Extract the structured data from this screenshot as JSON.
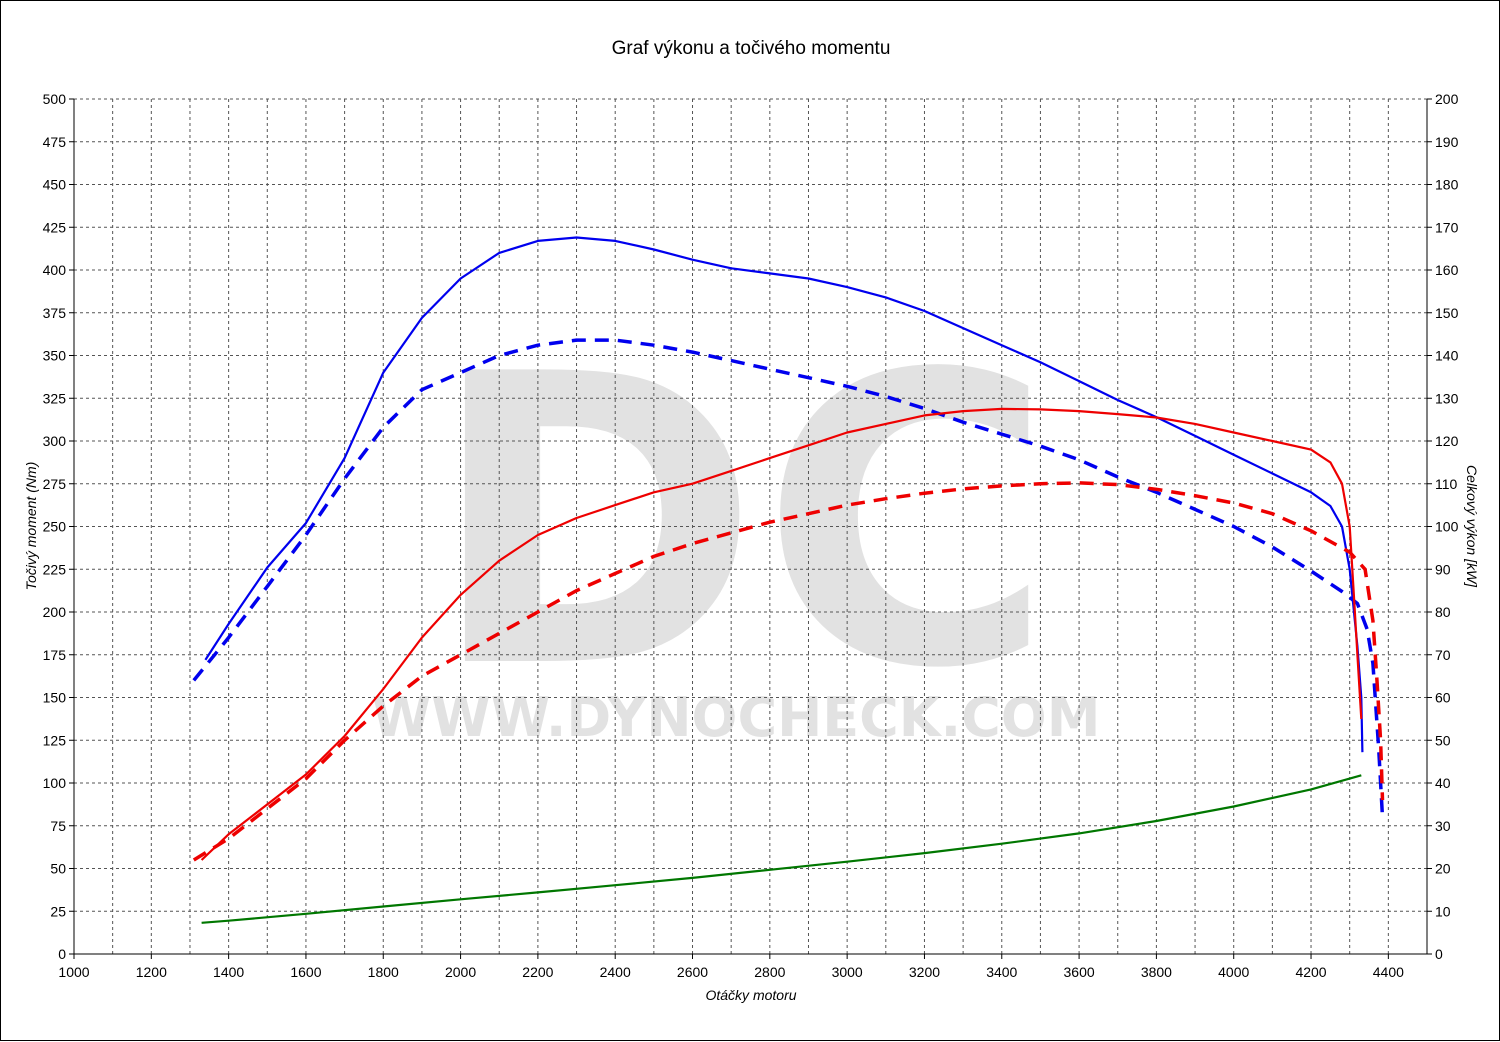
{
  "chart_data": {
    "type": "line",
    "title": "Graf výkonu a točivého momentu",
    "xlabel": "Otáčky motoru",
    "ylabel_left": "Točivý moment (Nm)",
    "ylabel_right": "Celkový výkon [kW]",
    "xlim": [
      1000,
      4500
    ],
    "ylim_left": [
      0,
      500
    ],
    "ylim_right": [
      0,
      200
    ],
    "x_ticks": [
      1000,
      1200,
      1400,
      1600,
      1800,
      2000,
      2200,
      2400,
      2600,
      2800,
      3000,
      3200,
      3400,
      3600,
      3800,
      4000,
      4200,
      4400
    ],
    "y_ticks_left": [
      0,
      25,
      50,
      75,
      100,
      125,
      150,
      175,
      200,
      225,
      250,
      275,
      300,
      325,
      350,
      375,
      400,
      425,
      450,
      475,
      500
    ],
    "y_ticks_right": [
      0,
      10,
      20,
      30,
      40,
      50,
      60,
      70,
      80,
      90,
      100,
      110,
      120,
      130,
      140,
      150,
      160,
      170,
      180,
      190,
      200
    ],
    "grid": true,
    "legend": "none",
    "watermark": {
      "logo": "DC",
      "text": "WWW.DYNOCHECK.COM"
    },
    "series": [
      {
        "color": "#0000ee",
        "dash": false,
        "axis": "left",
        "points": [
          [
            1340,
            172
          ],
          [
            1400,
            193
          ],
          [
            1500,
            226
          ],
          [
            1600,
            252
          ],
          [
            1700,
            290
          ],
          [
            1800,
            340
          ],
          [
            1900,
            372
          ],
          [
            2000,
            395
          ],
          [
            2100,
            410
          ],
          [
            2200,
            417
          ],
          [
            2300,
            419
          ],
          [
            2400,
            417
          ],
          [
            2500,
            412
          ],
          [
            2600,
            406
          ],
          [
            2700,
            401
          ],
          [
            2800,
            398
          ],
          [
            2900,
            395
          ],
          [
            3000,
            390
          ],
          [
            3100,
            384
          ],
          [
            3200,
            376
          ],
          [
            3300,
            366
          ],
          [
            3400,
            356
          ],
          [
            3500,
            346
          ],
          [
            3600,
            335
          ],
          [
            3700,
            324
          ],
          [
            3800,
            314
          ],
          [
            3900,
            303
          ],
          [
            4000,
            292
          ],
          [
            4100,
            281
          ],
          [
            4200,
            270
          ],
          [
            4250,
            262
          ],
          [
            4280,
            250
          ],
          [
            4300,
            225
          ],
          [
            4320,
            180
          ],
          [
            4330,
            150
          ],
          [
            4333,
            118
          ]
        ]
      },
      {
        "color": "#0000ee",
        "dash": true,
        "axis": "left",
        "points": [
          [
            1310,
            160
          ],
          [
            1400,
            185
          ],
          [
            1500,
            215
          ],
          [
            1600,
            245
          ],
          [
            1700,
            278
          ],
          [
            1800,
            308
          ],
          [
            1900,
            330
          ],
          [
            2000,
            340
          ],
          [
            2100,
            350
          ],
          [
            2200,
            356
          ],
          [
            2300,
            359
          ],
          [
            2400,
            359
          ],
          [
            2500,
            356
          ],
          [
            2600,
            352
          ],
          [
            2700,
            347
          ],
          [
            2800,
            342
          ],
          [
            2900,
            337
          ],
          [
            3000,
            332
          ],
          [
            3100,
            326
          ],
          [
            3200,
            319
          ],
          [
            3300,
            311
          ],
          [
            3400,
            304
          ],
          [
            3500,
            297
          ],
          [
            3600,
            289
          ],
          [
            3700,
            279
          ],
          [
            3800,
            270
          ],
          [
            3900,
            260
          ],
          [
            4000,
            250
          ],
          [
            4100,
            238
          ],
          [
            4200,
            224
          ],
          [
            4280,
            212
          ],
          [
            4320,
            205
          ],
          [
            4345,
            190
          ],
          [
            4360,
            170
          ],
          [
            4375,
            120
          ],
          [
            4385,
            80
          ]
        ]
      },
      {
        "color": "#ee0000",
        "dash": false,
        "axis": "right",
        "points": [
          [
            1330,
            22
          ],
          [
            1400,
            28
          ],
          [
            1500,
            35
          ],
          [
            1600,
            42
          ],
          [
            1700,
            51
          ],
          [
            1800,
            62
          ],
          [
            1900,
            74
          ],
          [
            2000,
            84
          ],
          [
            2100,
            92
          ],
          [
            2200,
            98
          ],
          [
            2300,
            102
          ],
          [
            2400,
            105
          ],
          [
            2500,
            108
          ],
          [
            2600,
            110
          ],
          [
            2700,
            113
          ],
          [
            2800,
            116
          ],
          [
            2900,
            119
          ],
          [
            3000,
            122
          ],
          [
            3100,
            124
          ],
          [
            3200,
            126
          ],
          [
            3300,
            127
          ],
          [
            3400,
            127.5
          ],
          [
            3500,
            127.4
          ],
          [
            3600,
            127
          ],
          [
            3700,
            126.3
          ],
          [
            3800,
            125.5
          ],
          [
            3900,
            124
          ],
          [
            4000,
            122
          ],
          [
            4100,
            120
          ],
          [
            4200,
            118
          ],
          [
            4250,
            115
          ],
          [
            4280,
            110
          ],
          [
            4300,
            100
          ],
          [
            4310,
            85
          ],
          [
            4320,
            70
          ],
          [
            4330,
            55
          ]
        ]
      },
      {
        "color": "#ee0000",
        "dash": true,
        "axis": "right",
        "points": [
          [
            1310,
            22
          ],
          [
            1400,
            27
          ],
          [
            1500,
            34
          ],
          [
            1600,
            41
          ],
          [
            1700,
            50
          ],
          [
            1800,
            58
          ],
          [
            1900,
            65
          ],
          [
            2000,
            70
          ],
          [
            2100,
            75
          ],
          [
            2200,
            80
          ],
          [
            2300,
            85
          ],
          [
            2400,
            89
          ],
          [
            2500,
            93
          ],
          [
            2600,
            96
          ],
          [
            2700,
            98.5
          ],
          [
            2800,
            101
          ],
          [
            2900,
            103
          ],
          [
            3000,
            105
          ],
          [
            3100,
            106.5
          ],
          [
            3200,
            107.8
          ],
          [
            3300,
            108.8
          ],
          [
            3400,
            109.5
          ],
          [
            3500,
            110
          ],
          [
            3600,
            110.2
          ],
          [
            3700,
            109.8
          ],
          [
            3800,
            108.7
          ],
          [
            3900,
            107.2
          ],
          [
            4000,
            105.5
          ],
          [
            4100,
            103
          ],
          [
            4200,
            99
          ],
          [
            4300,
            94
          ],
          [
            4340,
            90
          ],
          [
            4360,
            78
          ],
          [
            4370,
            65
          ],
          [
            4380,
            50
          ],
          [
            4385,
            36
          ]
        ]
      },
      {
        "color": "#007700",
        "dash": false,
        "axis": "right",
        "points": [
          [
            1330,
            7.3
          ],
          [
            1400,
            7.8
          ],
          [
            1600,
            9.4
          ],
          [
            1800,
            11.1
          ],
          [
            2000,
            12.8
          ],
          [
            2200,
            14.4
          ],
          [
            2400,
            16.1
          ],
          [
            2600,
            17.8
          ],
          [
            2800,
            19.7
          ],
          [
            3000,
            21.6
          ],
          [
            3200,
            23.6
          ],
          [
            3400,
            25.8
          ],
          [
            3600,
            28.2
          ],
          [
            3800,
            31.1
          ],
          [
            4000,
            34.5
          ],
          [
            4200,
            38.5
          ],
          [
            4330,
            41.8
          ]
        ]
      }
    ]
  }
}
